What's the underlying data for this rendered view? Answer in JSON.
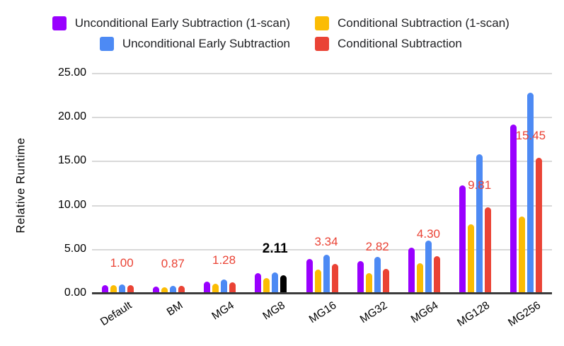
{
  "chart_data": {
    "type": "bar",
    "title": "",
    "ylabel": "Relative Runtime",
    "xlabel": "",
    "ylim": [
      0,
      25
    ],
    "ytick_step": 5,
    "yticks": [
      "0.00",
      "5.00",
      "10.00",
      "15.00",
      "20.00",
      "25.00"
    ],
    "grid": true,
    "legend_position": "top",
    "categories": [
      "Default",
      "BM",
      "MG4",
      "MG8",
      "MG16",
      "MG32",
      "MG64",
      "MG128",
      "MG256"
    ],
    "series": [
      {
        "name": "Unconditional Early Subtraction (1-scan)",
        "color": "#9900ff",
        "values": [
          0.98,
          0.8,
          1.4,
          2.3,
          3.9,
          3.72,
          5.2,
          12.3,
          19.2
        ]
      },
      {
        "name": "Conditional Subtraction (1-scan)",
        "color": "#fbbc04",
        "values": [
          0.95,
          0.73,
          1.1,
          1.8,
          2.7,
          2.3,
          3.45,
          7.9,
          8.8
        ]
      },
      {
        "name": "Unconditional Early Subtraction",
        "color": "#4d8af4",
        "values": [
          1.02,
          0.85,
          1.6,
          2.4,
          4.45,
          4.15,
          6.05,
          15.85,
          22.8
        ]
      },
      {
        "name": "Conditional Subtraction",
        "color": "#ea4335",
        "values": [
          1.0,
          0.87,
          1.28,
          2.11,
          3.34,
          2.82,
          4.3,
          9.81,
          15.45
        ]
      }
    ],
    "annotations": [
      {
        "category": "Default",
        "text": "1.00",
        "emphasis": false
      },
      {
        "category": "BM",
        "text": "0.87",
        "emphasis": false
      },
      {
        "category": "MG4",
        "text": "1.28",
        "emphasis": false
      },
      {
        "category": "MG8",
        "text": "2.11",
        "emphasis": true
      },
      {
        "category": "MG16",
        "text": "3.34",
        "emphasis": false
      },
      {
        "category": "MG32",
        "text": "2.82",
        "emphasis": false
      },
      {
        "category": "MG64",
        "text": "4.30",
        "emphasis": false
      },
      {
        "category": "MG128",
        "text": "9.81",
        "emphasis": false
      },
      {
        "category": "MG256",
        "text": "15.45",
        "emphasis": false
      }
    ],
    "annotations_anchor_series_index": 3,
    "annotation_color": "#ea4335",
    "highlight": {
      "category": "MG8",
      "series_index": 3,
      "bar_color": "#000000",
      "label_color": "#000000"
    },
    "colors": {
      "background": "#ffffff",
      "gridline": "#d9d9d9",
      "axis_line": "#3b3b3b",
      "text": "#000000"
    }
  }
}
